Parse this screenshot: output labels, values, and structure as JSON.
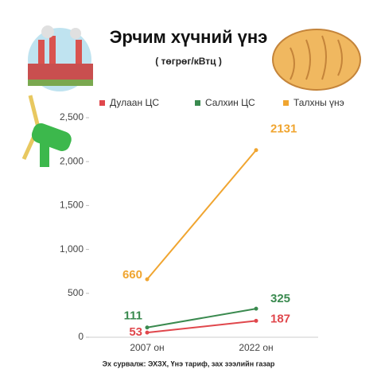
{
  "chart_data": {
    "type": "line",
    "title": "Эрчим хүчний үнэ",
    "subtitle": "( төгрөг/кВтц )",
    "categories": [
      "2007 он",
      "2022 он"
    ],
    "series": [
      {
        "name": "Дулаан ЦС",
        "color": "#e0474c",
        "values": [
          53,
          187
        ]
      },
      {
        "name": "Салхин ЦС",
        "color": "#3a8a4f",
        "values": [
          111,
          325
        ]
      },
      {
        "name": "Талхны үнэ",
        "color": "#f0a530",
        "values": [
          660,
          2131
        ]
      }
    ],
    "ylim": [
      0,
      2500
    ],
    "yticks": [
      0,
      500,
      {
        "value": 1000,
        "label": "1,000"
      },
      {
        "value": 1500,
        "label": "1,500"
      },
      {
        "value": 2000,
        "label": "2,000"
      },
      {
        "value": 2500,
        "label": "2,500"
      }
    ],
    "grid": false,
    "legend": "top",
    "source": "Эх сурвалж: ЭХЗХ, Үнэ тариф, зах зээлийн газар"
  }
}
